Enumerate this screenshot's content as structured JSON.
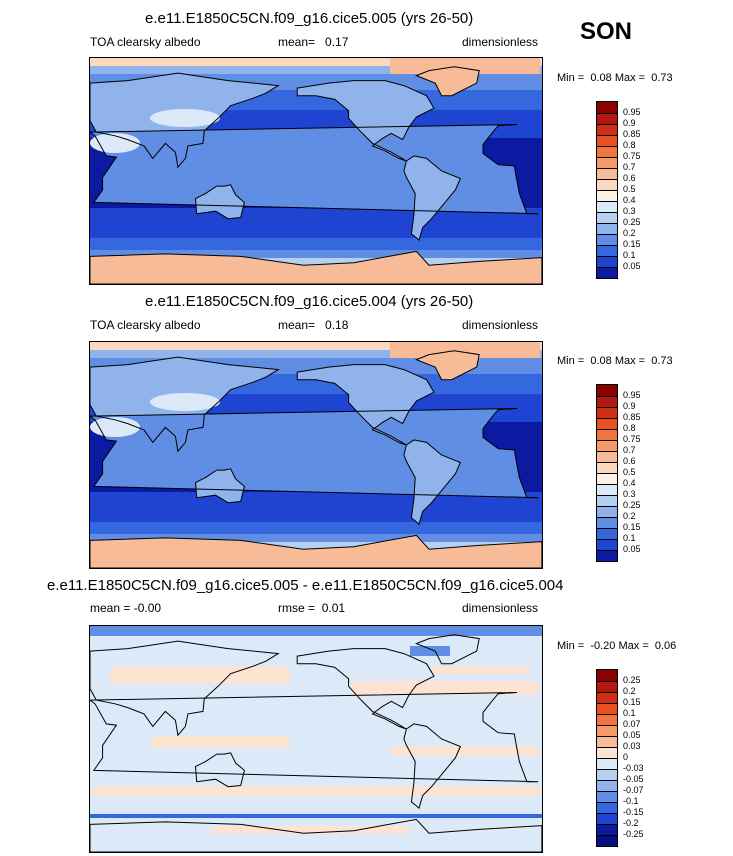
{
  "season": "SON",
  "chart_data": [
    {
      "type": "heatmap",
      "title": "e.e11.E1850C5CN.f09_g16.cice5.005 (yrs 26-50)",
      "variable": "TOA clearsky albedo",
      "stat_label": "mean=",
      "stat_value": "0.17",
      "units": "dimensionless",
      "min_label": "Min =",
      "min_value": "0.08",
      "max_label": "Max =",
      "max_value": "0.73",
      "levels": [
        "0.95",
        "0.9",
        "0.85",
        "0.8",
        "0.75",
        "0.7",
        "0.6",
        "0.5",
        "0.4",
        "0.3",
        "0.25",
        "0.2",
        "0.15",
        "0.1",
        "0.05"
      ],
      "colors": [
        "#8b0000",
        "#b2180f",
        "#cf2d14",
        "#e9501f",
        "#f27440",
        "#f69a6a",
        "#f8bb98",
        "#fbd8c0",
        "#fdf2e6",
        "#dce9f8",
        "#b5d0f0",
        "#8fb3ea",
        "#5f8ee4",
        "#3568de",
        "#1f44d2",
        "#0b1aa0"
      ]
    },
    {
      "type": "heatmap",
      "title": "e.e11.E1850C5CN.f09_g16.cice5.004 (yrs 26-50)",
      "variable": "TOA clearsky albedo",
      "stat_label": "mean=",
      "stat_value": "0.18",
      "units": "dimensionless",
      "min_label": "Min =",
      "min_value": "0.08",
      "max_label": "Max =",
      "max_value": "0.73",
      "levels": [
        "0.95",
        "0.9",
        "0.85",
        "0.8",
        "0.75",
        "0.7",
        "0.6",
        "0.5",
        "0.4",
        "0.3",
        "0.25",
        "0.2",
        "0.15",
        "0.1",
        "0.05"
      ],
      "colors": [
        "#8b0000",
        "#b2180f",
        "#cf2d14",
        "#e9501f",
        "#f27440",
        "#f69a6a",
        "#f8bb98",
        "#fbd8c0",
        "#fdf2e6",
        "#dce9f8",
        "#b5d0f0",
        "#8fb3ea",
        "#5f8ee4",
        "#3568de",
        "#1f44d2",
        "#0b1aa0"
      ]
    },
    {
      "type": "heatmap",
      "title": "e.e11.E1850C5CN.f09_g16.cice5.005 - e.e11.E1850C5CN.f09_g16.cice5.004",
      "variable": "mean = -0.00",
      "stat_label": "rmse =",
      "stat_value": "0.01",
      "units": "dimensionless",
      "min_label": "Min =",
      "min_value": "-0.20",
      "max_label": "Max =",
      "max_value": "0.06",
      "levels": [
        "0.25",
        "0.2",
        "0.15",
        "0.1",
        "0.07",
        "0.05",
        "0.03",
        "0",
        "-0.03",
        "-0.05",
        "-0.07",
        "-0.1",
        "-0.15",
        "-0.2",
        "-0.25"
      ],
      "colors": [
        "#8b0000",
        "#b2180f",
        "#cf2d14",
        "#e9501f",
        "#f27440",
        "#f69a6a",
        "#f8bb98",
        "#fde3d2",
        "#dce9f8",
        "#b5d0f0",
        "#8fb3ea",
        "#5f8ee4",
        "#3568de",
        "#1f44d2",
        "#0b1aa0",
        "#051080"
      ]
    }
  ]
}
